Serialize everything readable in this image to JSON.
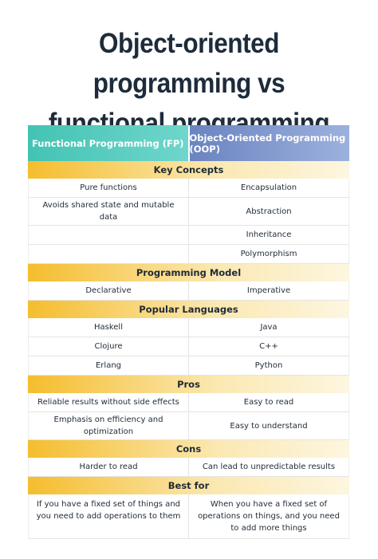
{
  "header": {
    "title": "Object-oriented programming vs functional programming"
  },
  "table": {
    "columns": [
      "Functional Programming (FP)",
      "Object-Oriented Programming (OOP)"
    ],
    "sections": [
      {
        "title": "Key Concepts",
        "fp": [
          "Pure functions",
          "Avoids shared state and mutable data"
        ],
        "oop": [
          "Encapsulation",
          "Abstraction",
          "Inheritance",
          "Polymorphism"
        ]
      },
      {
        "title": "Programming Model",
        "fp": [
          "Declarative"
        ],
        "oop": [
          "Imperative"
        ]
      },
      {
        "title": "Popular Languages",
        "fp": [
          "Haskell",
          "Clojure",
          "Erlang"
        ],
        "oop": [
          "Java",
          "C++",
          "Python"
        ]
      },
      {
        "title": "Pros",
        "fp": [
          "Reliable results without side effects",
          "Emphasis on efficiency and optimization"
        ],
        "oop": [
          "Easy to read",
          "Easy to understand"
        ]
      },
      {
        "title": "Cons",
        "fp": [
          "Harder to read"
        ],
        "oop": [
          "Can lead to unpredictable results"
        ]
      },
      {
        "title": "Best for",
        "fp": [
          "If you have a fixed set of things and you need to add operations to them"
        ],
        "oop": [
          "When you have a fixed set of operations on things, and you need to add more things"
        ]
      }
    ]
  }
}
